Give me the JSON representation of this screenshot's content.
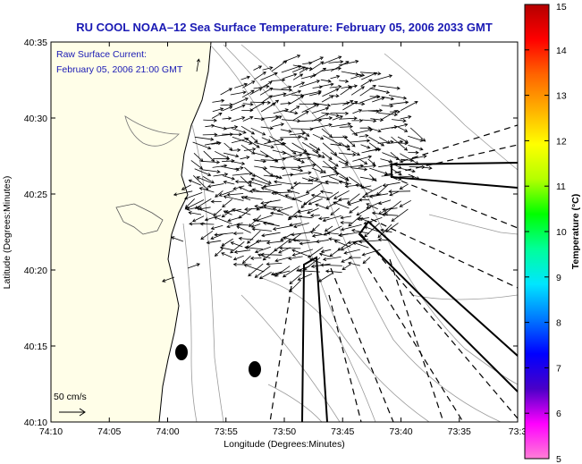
{
  "title": "RU COOL  NOAA–12  Sea Surface Temperature:  February 05, 2006 2033 GMT",
  "overlay": {
    "line1": "Raw Surface Current:",
    "line2": "February 05, 2006 21:00 GMT"
  },
  "scale": {
    "label": "50 cm/s"
  },
  "axes": {
    "xlabel": "Longitude (Degrees:Minutes)",
    "ylabel": "Latitude (Degrees:Minutes)",
    "xticks": [
      "74:10",
      "74:05",
      "74:00",
      "73:55",
      "73:50",
      "73:45",
      "73:40",
      "73:35",
      "73:3"
    ],
    "yticks": [
      "40:35",
      "40:30",
      "40:25",
      "40:20",
      "40:15",
      "40:10"
    ]
  },
  "colorbar": {
    "label": "Temperature (°C)",
    "ticks": [
      "15",
      "14",
      "13",
      "12",
      "11",
      "10",
      "9",
      "8",
      "7",
      "6",
      "5"
    ],
    "range": [
      5,
      15
    ],
    "stops": [
      "#ff7fd6",
      "#ff00ff",
      "#4a00c8",
      "#0000ff",
      "#0078ff",
      "#00e6ff",
      "#00ff9a",
      "#00ff00",
      "#b4ff00",
      "#ffff00",
      "#ffb000",
      "#ff6400",
      "#ff0000",
      "#b40000"
    ]
  },
  "colors": {
    "land": "#fffee8",
    "title": "#1a1ab4",
    "vectors": "#000000",
    "bathymetry": "#9a9a9a"
  }
}
